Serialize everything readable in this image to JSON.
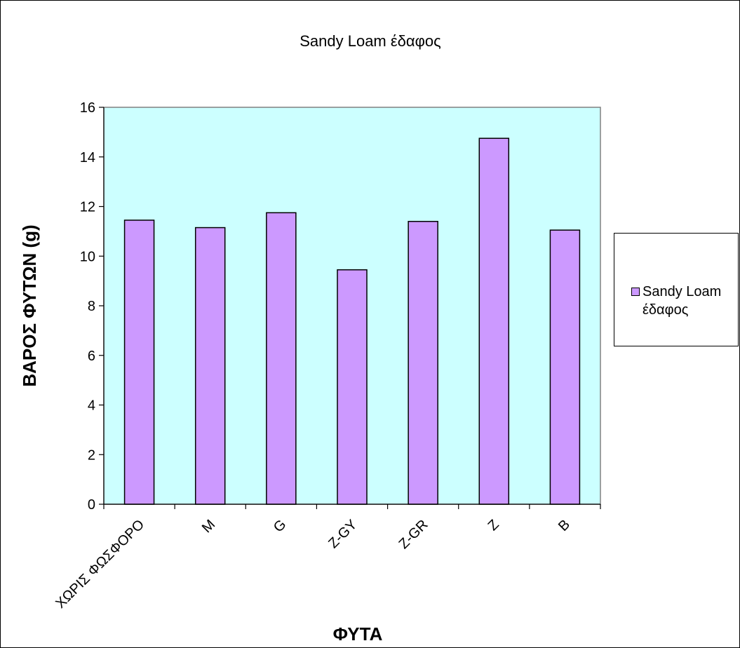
{
  "chart_data": {
    "type": "bar",
    "title": "Sandy Loam έδαφος",
    "xlabel": "ΦΥΤΑ",
    "ylabel": "ΒΑΡΟΣ ΦΥΤΩΝ (g)",
    "categories": [
      "ΧΩΡΙΣ ΦΩΣΦΟΡΟ",
      "M",
      "G",
      "Z-GY",
      "Z-GR",
      "Z",
      "B"
    ],
    "series": [
      {
        "name": "Sandy Loam έδαφος",
        "values": [
          11.45,
          11.15,
          11.75,
          9.45,
          11.4,
          14.75,
          11.05
        ]
      }
    ],
    "ylim": [
      0,
      16
    ],
    "yticks": [
      0,
      2,
      4,
      6,
      8,
      10,
      12,
      14,
      16
    ],
    "grid": false,
    "legend_position": "right",
    "colors": {
      "plot_background": "#ccffff",
      "bar_fill": "#cc99ff",
      "bar_stroke": "#000000"
    }
  }
}
